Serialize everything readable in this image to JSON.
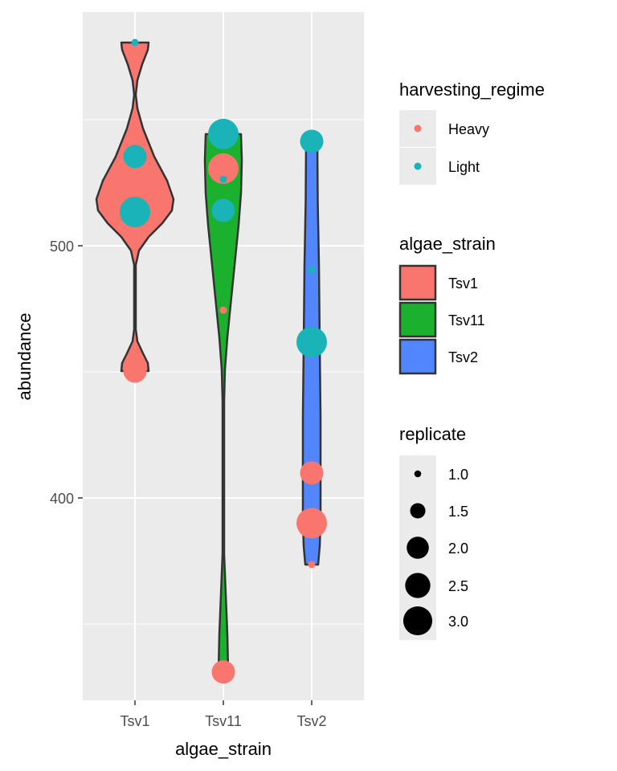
{
  "chart_data": {
    "type": "violin",
    "xlabel": "algae_strain",
    "ylabel": "abundance",
    "categories": [
      "Tsv1",
      "Tsv11",
      "Tsv2"
    ],
    "y_ticks": [
      400,
      500
    ],
    "ylim": [
      317,
      590
    ],
    "grid": true,
    "fill_colors": {
      "Tsv1": "#F8766D",
      "Tsv11": "#1BB12E",
      "Tsv2": "#5286FF"
    },
    "point_colors": {
      "Heavy": "#F8766D",
      "Light": "#1AB3B8"
    },
    "points": [
      {
        "strain": "Tsv1",
        "regime": "Light",
        "replicate": 1,
        "abundance": 580.6
      },
      {
        "strain": "Tsv1",
        "regime": "Light",
        "replicate": 2,
        "abundance": 535.4
      },
      {
        "strain": "Tsv1",
        "regime": "Light",
        "replicate": 3,
        "abundance": 513.4
      },
      {
        "strain": "Tsv1",
        "regime": "Heavy",
        "replicate": 2,
        "abundance": 450.3
      },
      {
        "strain": "Tsv11",
        "regime": "Light",
        "replicate": 3,
        "abundance": 544.3
      },
      {
        "strain": "Tsv11",
        "regime": "Heavy",
        "replicate": 3,
        "abundance": 530.6
      },
      {
        "strain": "Tsv11",
        "regime": "Light",
        "replicate": 1,
        "abundance": 526.4
      },
      {
        "strain": "Tsv11",
        "regime": "Light",
        "replicate": 2,
        "abundance": 514.0
      },
      {
        "strain": "Tsv11",
        "regime": "Heavy",
        "replicate": 1,
        "abundance": 474.5
      },
      {
        "strain": "Tsv11",
        "regime": "Heavy",
        "replicate": 2,
        "abundance": 331.0
      },
      {
        "strain": "Tsv2",
        "regime": "Light",
        "replicate": 2,
        "abundance": 541.4
      },
      {
        "strain": "Tsv2",
        "regime": "Light",
        "replicate": 1,
        "abundance": 490.4
      },
      {
        "strain": "Tsv2",
        "regime": "Light",
        "replicate": 3,
        "abundance": 461.8
      },
      {
        "strain": "Tsv2",
        "regime": "Heavy",
        "replicate": 2,
        "abundance": 409.9
      },
      {
        "strain": "Tsv2",
        "regime": "Heavy",
        "replicate": 3,
        "abundance": 390.0
      },
      {
        "strain": "Tsv2",
        "regime": "Heavy",
        "replicate": 1,
        "abundance": 373.6
      }
    ],
    "legends": {
      "harvesting_regime": {
        "title": "harvesting_regime",
        "entries": [
          "Heavy",
          "Light"
        ]
      },
      "algae_strain": {
        "title": "algae_strain",
        "entries": [
          "Tsv1",
          "Tsv11",
          "Tsv2"
        ]
      },
      "replicate": {
        "title": "replicate",
        "entries": [
          "1.0",
          "1.5",
          "2.0",
          "2.5",
          "3.0"
        ]
      }
    },
    "legend_placement": "right"
  }
}
